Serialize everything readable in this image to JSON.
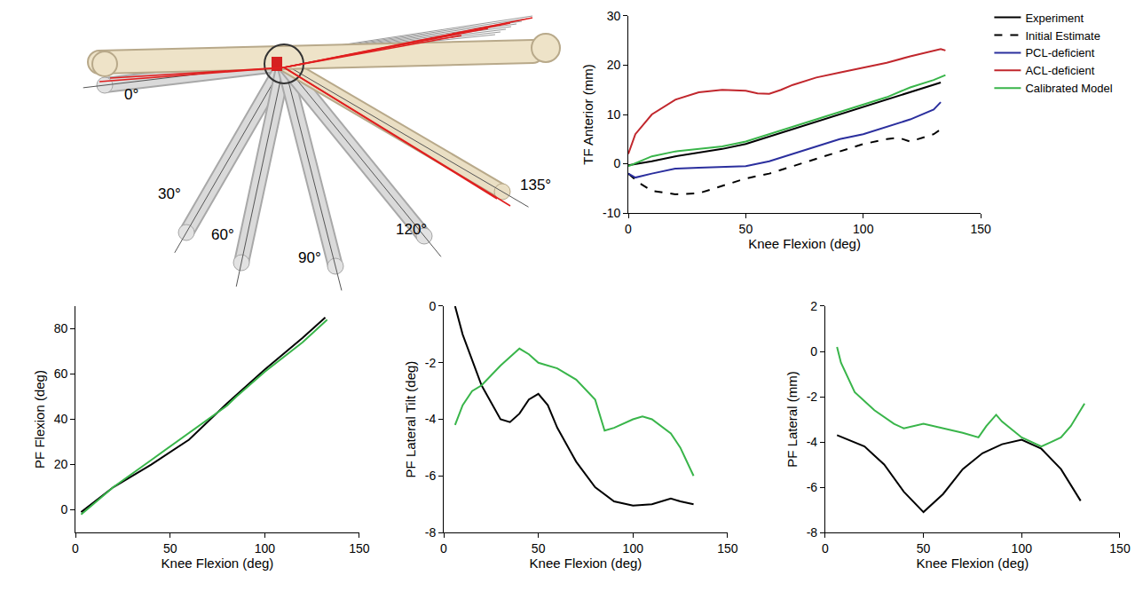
{
  "diagram": {
    "angle_labels": [
      "0°",
      "30°",
      "60°",
      "90°",
      "120°",
      "135°"
    ]
  },
  "chart_data": [
    {
      "type": "line",
      "x_label": "Knee Flexion (deg)",
      "y_label": "TF Anterior (mm)",
      "xlim": [
        0,
        150
      ],
      "xticks": [
        0,
        50,
        100,
        150
      ],
      "ylim": [
        -10,
        30
      ],
      "yticks": [
        -10,
        0,
        10,
        20,
        30
      ],
      "grid": false,
      "legend": "right",
      "series": [
        {
          "name": "Experiment",
          "color": "#000000",
          "line_style": "solid",
          "x": [
            0,
            10,
            20,
            30,
            40,
            50,
            60,
            70,
            80,
            90,
            100,
            110,
            120,
            133
          ],
          "values": [
            -0.3,
            0.5,
            1.5,
            2.2,
            3,
            4,
            5.5,
            7,
            8.5,
            10,
            11.5,
            13,
            14.5,
            16.5
          ]
        },
        {
          "name": "Initial Estimate",
          "color": "#000000",
          "line_style": "dashed",
          "x": [
            0,
            5,
            10,
            20,
            30,
            40,
            50,
            60,
            70,
            80,
            90,
            100,
            110,
            115,
            120,
            125,
            130,
            133
          ],
          "values": [
            -2,
            -4,
            -5.5,
            -6.2,
            -6,
            -4.5,
            -3,
            -2,
            -0.5,
            1,
            2.5,
            4,
            5,
            5.3,
            4.5,
            5.2,
            6,
            7
          ]
        },
        {
          "name": "PCL-deficient",
          "color": "#2b2f9e",
          "line_style": "solid",
          "x": [
            0,
            3,
            10,
            20,
            30,
            40,
            50,
            60,
            70,
            80,
            90,
            100,
            110,
            120,
            130,
            133
          ],
          "values": [
            -2,
            -2.8,
            -2,
            -1,
            -0.8,
            -0.7,
            -0.5,
            0.5,
            2,
            3.5,
            5,
            6,
            7.5,
            9,
            11,
            12.5
          ]
        },
        {
          "name": "ACL-deficient",
          "color": "#c1272d",
          "line_style": "solid",
          "x": [
            0,
            3,
            10,
            20,
            30,
            40,
            50,
            55,
            60,
            65,
            70,
            80,
            90,
            100,
            110,
            120,
            130,
            133,
            135
          ],
          "values": [
            2,
            6,
            10,
            13,
            14.5,
            15,
            14.8,
            14.3,
            14.2,
            15,
            16,
            17.5,
            18.5,
            19.5,
            20.5,
            21.8,
            23,
            23.3,
            23
          ]
        },
        {
          "name": "Calibrated Model",
          "color": "#39b54a",
          "line_style": "solid",
          "x": [
            0,
            5,
            10,
            20,
            30,
            40,
            50,
            60,
            70,
            80,
            90,
            100,
            110,
            120,
            130,
            135
          ],
          "values": [
            -0.5,
            0.5,
            1.5,
            2.5,
            3,
            3.5,
            4.5,
            6,
            7.5,
            9,
            10.5,
            12,
            13.5,
            15.5,
            17,
            18
          ]
        }
      ]
    },
    {
      "type": "line",
      "x_label": "Knee Flexion (deg)",
      "y_label": "PF Flexion (deg)",
      "xlim": [
        0,
        150
      ],
      "xticks": [
        0,
        50,
        100,
        150
      ],
      "ylim": [
        -10,
        90
      ],
      "yticks": [
        0,
        20,
        40,
        60,
        80
      ],
      "grid": false,
      "series": [
        {
          "color": "#000000",
          "line_style": "solid",
          "x": [
            3,
            20,
            40,
            60,
            80,
            100,
            120,
            132
          ],
          "values": [
            -1,
            10,
            20,
            31,
            47,
            62,
            76,
            85
          ]
        },
        {
          "color": "#39b54a",
          "line_style": "solid",
          "x": [
            3,
            20,
            40,
            60,
            80,
            85,
            100,
            120,
            133
          ],
          "values": [
            -2,
            10,
            22,
            34,
            46,
            50,
            61,
            74,
            84
          ]
        }
      ]
    },
    {
      "type": "line",
      "x_label": "Knee Flexion (deg)",
      "y_label": "PF Lateral Tilt (deg)",
      "xlim": [
        0,
        150
      ],
      "xticks": [
        0,
        50,
        100,
        150
      ],
      "ylim": [
        -8,
        0
      ],
      "yticks": [
        -8,
        -6,
        -4,
        -2,
        0
      ],
      "grid": false,
      "series": [
        {
          "color": "#000000",
          "line_style": "solid",
          "x": [
            6,
            10,
            20,
            30,
            35,
            40,
            45,
            50,
            55,
            60,
            70,
            80,
            90,
            100,
            110,
            120,
            125,
            132
          ],
          "values": [
            0,
            -1,
            -2.8,
            -4,
            -4.1,
            -3.8,
            -3.3,
            -3.1,
            -3.5,
            -4.3,
            -5.5,
            -6.4,
            -6.9,
            -7.05,
            -7,
            -6.8,
            -6.9,
            -7
          ]
        },
        {
          "color": "#39b54a",
          "line_style": "solid",
          "x": [
            6,
            10,
            15,
            20,
            30,
            40,
            45,
            50,
            60,
            70,
            80,
            85,
            90,
            100,
            105,
            110,
            120,
            125,
            132
          ],
          "values": [
            -4.2,
            -3.5,
            -3,
            -2.8,
            -2.1,
            -1.5,
            -1.7,
            -2,
            -2.2,
            -2.6,
            -3.3,
            -4.4,
            -4.3,
            -4,
            -3.9,
            -4,
            -4.5,
            -5,
            -6
          ]
        }
      ]
    },
    {
      "type": "line",
      "x_label": "Knee Flexion (deg)",
      "y_label": "PF Lateral (mm)",
      "xlim": [
        0,
        150
      ],
      "xticks": [
        0,
        50,
        100,
        150
      ],
      "ylim": [
        -8,
        2
      ],
      "yticks": [
        -8,
        -6,
        -4,
        -2,
        0,
        2
      ],
      "grid": false,
      "series": [
        {
          "color": "#000000",
          "line_style": "solid",
          "x": [
            6,
            20,
            30,
            40,
            50,
            60,
            70,
            80,
            90,
            100,
            110,
            120,
            130
          ],
          "values": [
            -3.7,
            -4.2,
            -5,
            -6.2,
            -7.1,
            -6.3,
            -5.2,
            -4.5,
            -4.1,
            -3.9,
            -4.3,
            -5.2,
            -6.6
          ]
        },
        {
          "color": "#39b54a",
          "line_style": "solid",
          "x": [
            6,
            8,
            15,
            25,
            35,
            40,
            50,
            60,
            70,
            78,
            82,
            87,
            90,
            100,
            110,
            115,
            120,
            125,
            132
          ],
          "values": [
            0.2,
            -0.5,
            -1.8,
            -2.6,
            -3.2,
            -3.4,
            -3.2,
            -3.4,
            -3.6,
            -3.8,
            -3.3,
            -2.8,
            -3.1,
            -3.8,
            -4.2,
            -4,
            -3.8,
            -3.3,
            -2.3
          ]
        }
      ]
    }
  ]
}
